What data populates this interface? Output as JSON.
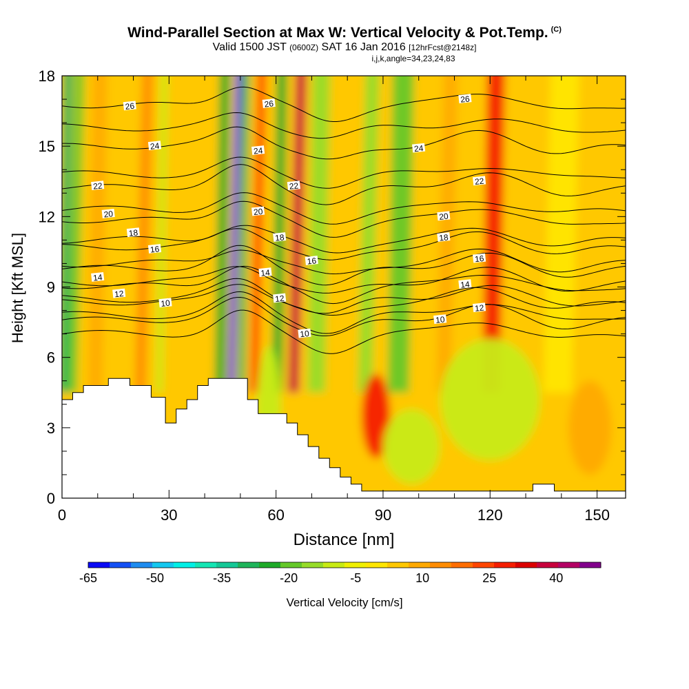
{
  "header": {
    "title": "Wind-Parallel Section at Max W: Vertical Velocity & Pot.Temp.",
    "title_mark": "(C)",
    "subtitle_a": "Valid 1500 JST",
    "subtitle_b": "(0600Z)",
    "subtitle_c": "SAT 16 Jan 2016",
    "subtitle_d": "[12hrFcst@2148z]",
    "subtitle_2": "i,j,k,angle=34,23,24,83"
  },
  "chart_data": {
    "type": "heatmap",
    "xlabel": "Distance [nm]",
    "ylabel": "Height [Kft MSL]",
    "xlim": [
      0,
      158
    ],
    "ylim": [
      0,
      18
    ],
    "x_ticks": [
      0,
      30,
      60,
      90,
      120,
      150
    ],
    "y_ticks": [
      0,
      3,
      6,
      9,
      12,
      15,
      18
    ],
    "colorbar": {
      "label": "Vertical Velocity [cm/s]",
      "tick_values": [
        -65,
        -50,
        -35,
        -20,
        -5,
        10,
        25,
        40
      ],
      "range": [
        -65,
        50
      ],
      "step": 5,
      "colors": [
        "#0a0af5",
        "#1450f5",
        "#1e8cf0",
        "#14c8f0",
        "#00f0e6",
        "#14e6b4",
        "#14c896",
        "#1eb45a",
        "#1eaa28",
        "#64c828",
        "#96dc28",
        "#c8eb14",
        "#f0f000",
        "#ffe600",
        "#ffc800",
        "#ffaa00",
        "#ff8c00",
        "#ff6e00",
        "#ff4600",
        "#f51e00",
        "#dc0000",
        "#c8003c",
        "#b40064",
        "#82008c"
      ]
    },
    "velocity_bands": [
      {
        "x": 1,
        "w": 3,
        "v": -30
      },
      {
        "x": 4,
        "w": 2.5,
        "v": -18
      },
      {
        "x": 10,
        "w": 4,
        "v": 12
      },
      {
        "x": 23,
        "w": 3,
        "v": 15
      },
      {
        "x": 28,
        "w": 2,
        "v": -8
      },
      {
        "x": 34,
        "w": 3,
        "v": 8
      },
      {
        "x": 45,
        "w": 3,
        "v": -22
      },
      {
        "x": 48.5,
        "w": 1.8,
        "v": -62
      },
      {
        "x": 51,
        "w": 2,
        "v": -30
      },
      {
        "x": 55,
        "w": 2.5,
        "v": 28
      },
      {
        "x": 61,
        "w": 3,
        "v": -25
      },
      {
        "x": 66,
        "w": 3,
        "v": 40
      },
      {
        "x": 72,
        "w": 5,
        "v": -12
      },
      {
        "x": 86,
        "w": 4,
        "v": -15
      },
      {
        "x": 95,
        "w": 6,
        "v": -20
      },
      {
        "x": 108,
        "w": 4,
        "v": 14
      },
      {
        "x": 121,
        "w": 5,
        "v": 32
      },
      {
        "x": 140,
        "w": 8,
        "v": 4
      }
    ],
    "low_level_features": [
      {
        "x": 88,
        "y": 3.5,
        "rx": 4,
        "ry": 1.8,
        "v": 32
      },
      {
        "x": 98,
        "y": 2.2,
        "rx": 8,
        "ry": 1.6,
        "v": -6
      },
      {
        "x": 120,
        "y": 4.2,
        "rx": 14,
        "ry": 2.6,
        "v": -10
      },
      {
        "x": 58,
        "y": 3.5,
        "rx": 3.5,
        "ry": 3,
        "v": -8
      },
      {
        "x": 148,
        "y": 3,
        "rx": 6,
        "ry": 2,
        "v": 14
      }
    ],
    "terrain_kft": [
      [
        0,
        4.2
      ],
      [
        3,
        4.2
      ],
      [
        3,
        4.5
      ],
      [
        6,
        4.5
      ],
      [
        6,
        4.8
      ],
      [
        13,
        4.8
      ],
      [
        13,
        5.1
      ],
      [
        19,
        5.1
      ],
      [
        19,
        4.8
      ],
      [
        25,
        4.8
      ],
      [
        25,
        4.3
      ],
      [
        29,
        4.3
      ],
      [
        29,
        3.2
      ],
      [
        32,
        3.2
      ],
      [
        32,
        3.8
      ],
      [
        35,
        3.8
      ],
      [
        35,
        4.2
      ],
      [
        38,
        4.2
      ],
      [
        38,
        4.8
      ],
      [
        41,
        4.8
      ],
      [
        41,
        5.1
      ],
      [
        52,
        5.1
      ],
      [
        52,
        4.2
      ],
      [
        55,
        4.2
      ],
      [
        55,
        3.6
      ],
      [
        63,
        3.6
      ],
      [
        63,
        3.2
      ],
      [
        66,
        3.2
      ],
      [
        66,
        2.7
      ],
      [
        69,
        2.7
      ],
      [
        69,
        2.2
      ],
      [
        72,
        2.2
      ],
      [
        72,
        1.7
      ],
      [
        75,
        1.7
      ],
      [
        75,
        1.3
      ],
      [
        78,
        1.3
      ],
      [
        78,
        0.9
      ],
      [
        81,
        0.9
      ],
      [
        81,
        0.6
      ],
      [
        84,
        0.6
      ],
      [
        84,
        0.3
      ],
      [
        132,
        0.3
      ],
      [
        132,
        0.6
      ],
      [
        138,
        0.6
      ],
      [
        138,
        0.3
      ],
      [
        158,
        0.3
      ]
    ],
    "isentropes": [
      {
        "label": "10",
        "base": 7.0,
        "labels": [
          {
            "x": 29,
            "y": 8.3
          },
          {
            "x": 68,
            "y": 7.0
          },
          {
            "x": 106,
            "y": 7.6
          }
        ]
      },
      {
        "label": "12",
        "base": 7.8,
        "labels": [
          {
            "x": 16,
            "y": 8.7
          },
          {
            "x": 61,
            "y": 8.5
          },
          {
            "x": 117,
            "y": 8.1
          }
        ]
      },
      {
        "label": "14",
        "base": 8.5,
        "labels": [
          {
            "x": 10,
            "y": 9.4
          },
          {
            "x": 57,
            "y": 9.6
          },
          {
            "x": 113,
            "y": 9.1
          }
        ]
      },
      {
        "label": "16",
        "base": 9.2,
        "labels": [
          {
            "x": 26,
            "y": 10.6
          },
          {
            "x": 70,
            "y": 10.1
          },
          {
            "x": 117,
            "y": 10.2
          }
        ]
      },
      {
        "label": "18",
        "base": 10.0,
        "labels": [
          {
            "x": 20,
            "y": 11.3
          },
          {
            "x": 61,
            "y": 11.1
          },
          {
            "x": 107,
            "y": 11.1
          }
        ]
      },
      {
        "label": "20",
        "base": 11.0,
        "labels": [
          {
            "x": 13,
            "y": 12.1
          },
          {
            "x": 55,
            "y": 12.2
          },
          {
            "x": 107,
            "y": 12.0
          }
        ]
      },
      {
        "label": "22",
        "base": 12.3,
        "labels": [
          {
            "x": 10,
            "y": 13.3
          },
          {
            "x": 65,
            "y": 13.3
          },
          {
            "x": 117,
            "y": 13.5
          }
        ]
      },
      {
        "label": "24",
        "base": 13.8,
        "labels": [
          {
            "x": 26,
            "y": 15.0
          },
          {
            "x": 55,
            "y": 14.8
          },
          {
            "x": 100,
            "y": 14.9
          }
        ]
      },
      {
        "label": "26",
        "base": 15.8,
        "labels": [
          {
            "x": 19,
            "y": 16.7
          },
          {
            "x": 58,
            "y": 16.8
          },
          {
            "x": 113,
            "y": 17.0
          }
        ]
      }
    ]
  }
}
